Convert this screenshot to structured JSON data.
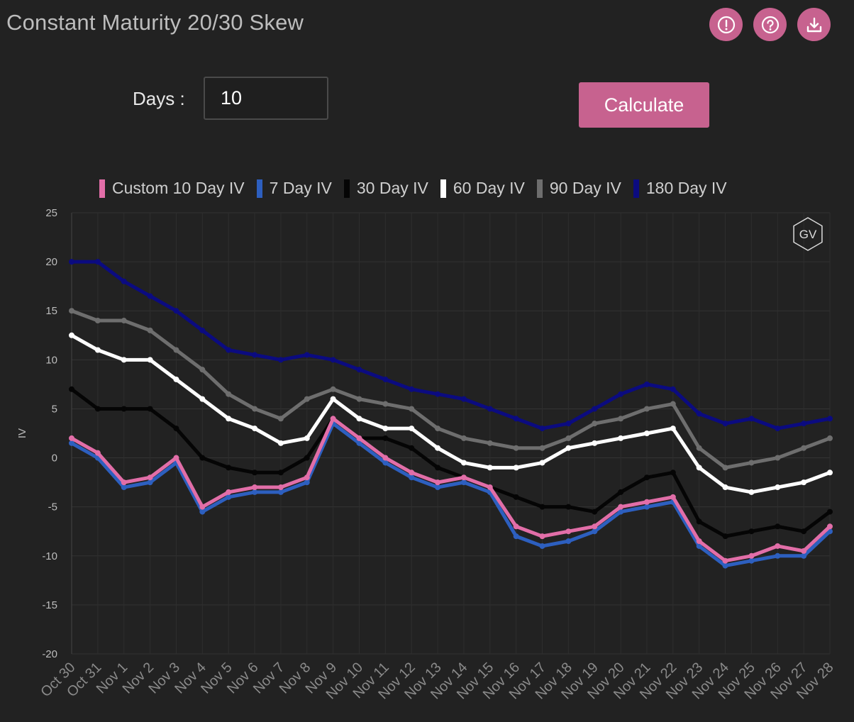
{
  "header": {
    "title": "Constant Maturity 20/30 Skew"
  },
  "toolbar": {
    "icons": [
      "alert-icon",
      "help-icon",
      "download-icon"
    ]
  },
  "controls": {
    "days_label": "Days :",
    "days_value": "10",
    "calculate_label": "Calculate"
  },
  "watermark": "GV",
  "colors": {
    "accent": "#c7628f",
    "background": "#222222"
  },
  "chart_data": {
    "type": "line",
    "title": "",
    "xlabel": "",
    "ylabel": "IV",
    "ylim": [
      -20,
      25
    ],
    "yticks": [
      25,
      20,
      15,
      10,
      5,
      0,
      -5,
      -10,
      -15,
      -20
    ],
    "xlim": [
      "Oct 30",
      "Nov 28"
    ],
    "x": [
      "Oct 30",
      "Oct 31",
      "Nov 1",
      "Nov 2",
      "Nov 3",
      "Nov 4",
      "Nov 5",
      "Nov 6",
      "Nov 7",
      "Nov 8",
      "Nov 9",
      "Nov 10",
      "Nov 11",
      "Nov 12",
      "Nov 13",
      "Nov 14",
      "Nov 15",
      "Nov 16",
      "Nov 17",
      "Nov 18",
      "Nov 19",
      "Nov 20",
      "Nov 21",
      "Nov 22",
      "Nov 23",
      "Nov 24",
      "Nov 25",
      "Nov 26",
      "Nov 27",
      "Nov 28"
    ],
    "grid": true,
    "legend_position": "top",
    "series": [
      {
        "name": "Custom 10 Day IV",
        "color": "#e26ea8",
        "values": [
          2,
          0.5,
          -2.5,
          -2,
          0,
          -5,
          -3.5,
          -3,
          -3,
          -2,
          4,
          2,
          0,
          -1.5,
          -2.5,
          -2,
          -3,
          -7,
          -8,
          -7.5,
          -7,
          -5,
          -4.5,
          -4,
          -8.5,
          -10.5,
          -10,
          -9,
          -9.5,
          -7
        ]
      },
      {
        "name": "7 Day IV",
        "color": "#2d5fbf",
        "values": [
          1.5,
          0,
          -3,
          -2.5,
          -0.5,
          -5.5,
          -4,
          -3.5,
          -3.5,
          -2.5,
          3.5,
          1.5,
          -0.5,
          -2,
          -3,
          -2.5,
          -3.5,
          -8,
          -9,
          -8.5,
          -7.5,
          -5.5,
          -5,
          -4.5,
          -9,
          -11,
          -10.5,
          -10,
          -10,
          -7.5
        ]
      },
      {
        "name": "30 Day IV",
        "color": "#050505",
        "values": [
          7,
          5,
          5,
          5,
          3,
          0,
          -1,
          -1.5,
          -1.5,
          0,
          4,
          2,
          2,
          1,
          -1,
          -2,
          -3,
          -4,
          -5,
          -5,
          -5.5,
          -3.5,
          -2,
          -1.5,
          -6.5,
          -8,
          -7.5,
          -7,
          -7.5,
          -5.5
        ]
      },
      {
        "name": "60 Day IV",
        "color": "#ffffff",
        "values": [
          12.5,
          11,
          10,
          10,
          8,
          6,
          4,
          3,
          1.5,
          2,
          6,
          4,
          3,
          3,
          1,
          -0.5,
          -1,
          -1,
          -0.5,
          1,
          1.5,
          2,
          2.5,
          3,
          -1,
          -3,
          -3.5,
          -3,
          -2.5,
          -1.5
        ]
      },
      {
        "name": "90 Day IV",
        "color": "#6e6e6e",
        "values": [
          15,
          14,
          14,
          13,
          11,
          9,
          6.5,
          5,
          4,
          6,
          7,
          6,
          5.5,
          5,
          3,
          2,
          1.5,
          1,
          1,
          2,
          3.5,
          4,
          5,
          5.5,
          1,
          -1,
          -0.5,
          0,
          1,
          2
        ]
      },
      {
        "name": "180 Day IV",
        "color": "#0b0b80",
        "values": [
          20,
          20,
          18,
          16.5,
          15,
          13,
          11,
          10.5,
          10,
          10.5,
          10,
          9,
          8,
          7,
          6.5,
          6,
          5,
          4,
          3,
          3.5,
          5,
          6.5,
          7.5,
          7,
          4.5,
          3.5,
          4,
          3,
          3.5,
          4
        ]
      }
    ]
  }
}
